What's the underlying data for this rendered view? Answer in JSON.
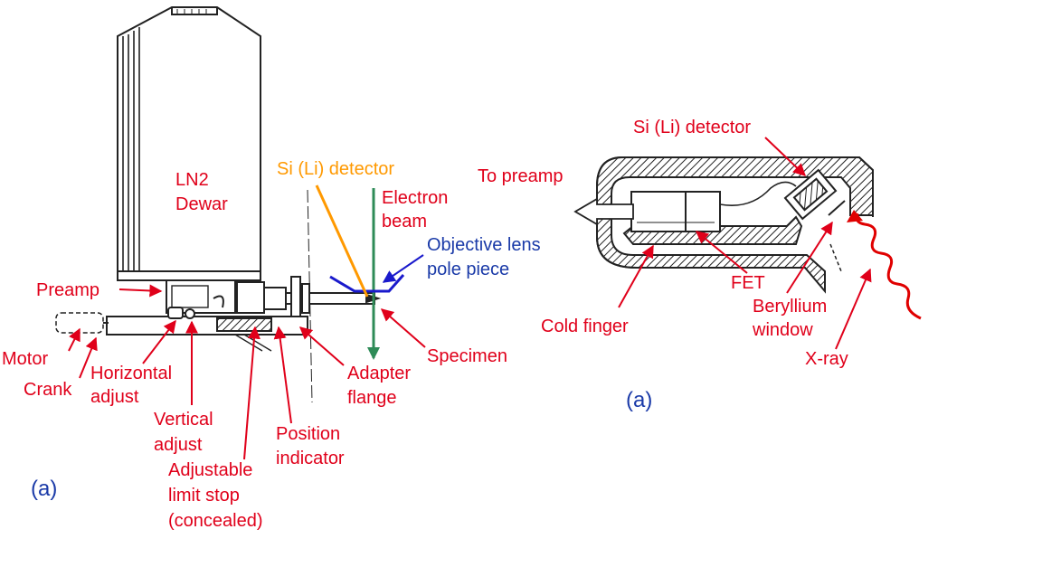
{
  "colors": {
    "label_red": "#e0001a",
    "label_blue": "#1a3aa8",
    "label_orange": "#ff9900",
    "electron_beam": "#2e8b57",
    "pole_piece": "#1a1acc",
    "xray_wave": "#e00000",
    "drawing_ink": "#222222"
  },
  "left_diagram": {
    "dewar_label": "LN2\nDewar",
    "detector_label": "Si (Li) detector",
    "electron_beam_label": "Electron\nbeam",
    "objective_lens_label": "Objective lens\npole piece",
    "preamp_label": "Preamp",
    "motor_label": "Motor",
    "crank_label": "Crank",
    "horizontal_adjust_label": "Horizontal\nadjust",
    "vertical_adjust_label": "Vertical\nadjust",
    "limit_stop_label": "Adjustable\nlimit stop\n(concealed)",
    "position_indicator_label": "Position\nindicator",
    "adapter_flange_label": "Adapter\nflange",
    "specimen_label": "Specimen",
    "panel_letter": "(a)"
  },
  "right_diagram": {
    "detector_label": "Si (Li) detector",
    "preamp_label": "To preamp",
    "cold_finger_label": "Cold finger",
    "fet_label": "FET",
    "beryllium_label": "Beryllium\nwindow",
    "xray_label": "X-ray",
    "panel_letter": "(a)"
  }
}
